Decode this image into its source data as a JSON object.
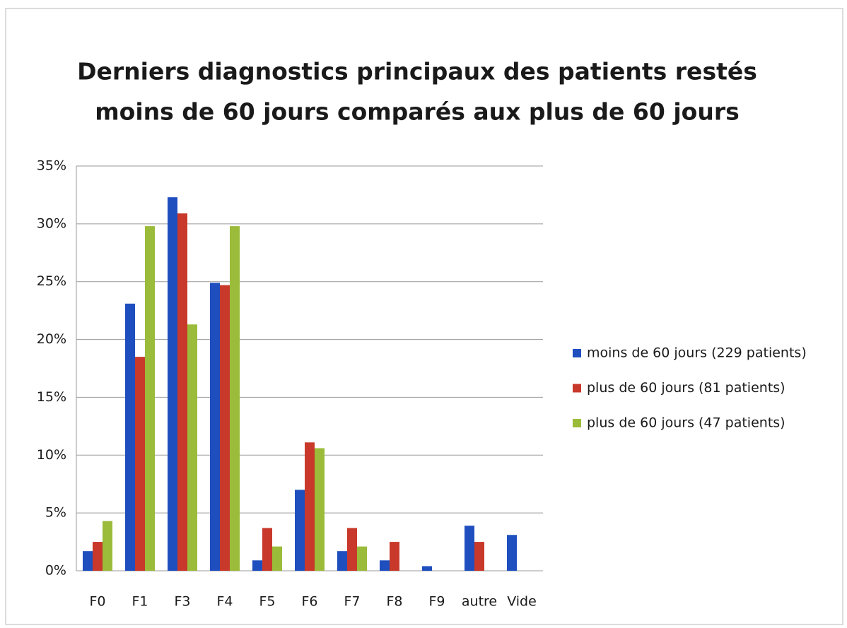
{
  "chart_data": {
    "type": "bar",
    "title": [
      "Derniers diagnostics principaux des patients restés",
      "moins de 60 jours comparés aux plus de 60 jours"
    ],
    "categories": [
      "F0",
      "F1",
      "F3",
      "F4",
      "F5",
      "F6",
      "F7",
      "F8",
      "F9",
      "autre",
      "Vide"
    ],
    "series": [
      {
        "name": "moins de 60 jours (229 patients)",
        "color": "#1f4fbf",
        "values": [
          1.7,
          23.1,
          32.3,
          24.9,
          0.9,
          7.0,
          1.7,
          0.9,
          0.4,
          3.9,
          3.1
        ]
      },
      {
        "name": "plus de 60 jours (81 patients)",
        "color": "#c8392b",
        "values": [
          2.5,
          18.5,
          30.9,
          24.7,
          3.7,
          11.1,
          3.7,
          2.5,
          0,
          2.5,
          0
        ]
      },
      {
        "name": "plus de 60 jours (47 patients)",
        "color": "#9bbb3a",
        "values": [
          4.3,
          29.8,
          21.3,
          29.8,
          2.1,
          10.6,
          2.1,
          0,
          0,
          0,
          0
        ]
      }
    ],
    "ylim": [
      0,
      35
    ],
    "yticks": [
      {
        "value": 0,
        "label": "0%"
      },
      {
        "value": 5,
        "label": "5%"
      },
      {
        "value": 10,
        "label": "10%"
      },
      {
        "value": 15,
        "label": "15%"
      },
      {
        "value": 20,
        "label": "20%"
      },
      {
        "value": 25,
        "label": "25%"
      },
      {
        "value": 30,
        "label": "30%"
      },
      {
        "value": 35,
        "label": "35%"
      }
    ],
    "grid": true,
    "legend": "right"
  }
}
